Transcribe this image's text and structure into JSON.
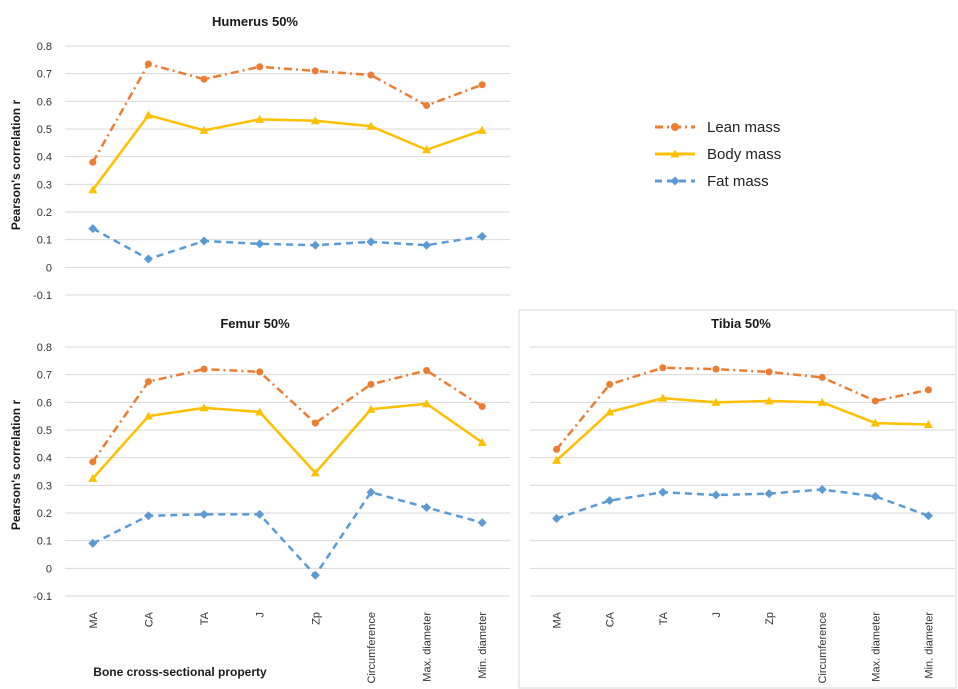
{
  "colors": {
    "lean": "#ED7D31",
    "body": "#FFC000",
    "fat": "#5B9BD5"
  },
  "shared": {
    "ylabel": "Pearson's correlation r",
    "xlabel": "Bone cross-sectional property",
    "ylim": [
      -0.1,
      0.8
    ],
    "yticks": [
      "0.8",
      "0.7",
      "0.6",
      "0.5",
      "0.4",
      "0.3",
      "0.2",
      "0.1",
      "0",
      "-0.1"
    ],
    "legend": [
      {
        "name": "Lean mass",
        "icon": "circle-marker"
      },
      {
        "name": "Body mass",
        "icon": "triangle-marker"
      },
      {
        "name": "Fat mass",
        "icon": "diamond-marker"
      }
    ]
  },
  "chart_data": [
    {
      "type": "line",
      "title": "Humerus 50%",
      "ylabel": "Pearson's correlation r",
      "ylim": [
        -0.1,
        0.8
      ],
      "grid": true,
      "legend_position": "right",
      "categories": [
        "MA",
        "CA",
        "TA",
        "J",
        "Zp",
        "Circumference",
        "Max. diameter",
        "Min. diameter"
      ],
      "category_labels_visible": false,
      "series": [
        {
          "name": "Lean mass",
          "values": [
            0.38,
            0.735,
            0.68,
            0.725,
            0.71,
            0.695,
            0.585,
            0.66
          ]
        },
        {
          "name": "Body mass",
          "values": [
            0.28,
            0.55,
            0.495,
            0.535,
            0.53,
            0.51,
            0.425,
            0.495
          ]
        },
        {
          "name": "Fat mass",
          "values": [
            0.14,
            0.03,
            0.095,
            0.085,
            0.08,
            0.092,
            0.08,
            0.112
          ]
        }
      ]
    },
    {
      "type": "line",
      "title": "Femur 50%",
      "ylabel": "Pearson's correlation r",
      "xlabel": "Bone cross-sectional property",
      "ylim": [
        -0.1,
        0.8
      ],
      "grid": true,
      "categories": [
        "MA",
        "CA",
        "TA",
        "J",
        "Zp",
        "Circumference",
        "Max. diameter",
        "Min. diameter"
      ],
      "series": [
        {
          "name": "Lean mass",
          "values": [
            0.385,
            0.675,
            0.72,
            0.71,
            0.525,
            0.665,
            0.715,
            0.585
          ]
        },
        {
          "name": "Body mass",
          "values": [
            0.325,
            0.55,
            0.58,
            0.565,
            0.345,
            0.575,
            0.595,
            0.455
          ]
        },
        {
          "name": "Fat mass",
          "values": [
            0.09,
            0.19,
            0.195,
            0.195,
            -0.025,
            0.275,
            0.22,
            0.165
          ]
        }
      ]
    },
    {
      "type": "line",
      "title": "Tibia 50%",
      "ylim": [
        -0.1,
        0.8
      ],
      "grid": true,
      "categories": [
        "MA",
        "CA",
        "TA",
        "J",
        "Zp",
        "Circumference",
        "Max. diameter",
        "Min. diameter"
      ],
      "series": [
        {
          "name": "Lean mass",
          "values": [
            0.43,
            0.665,
            0.725,
            0.72,
            0.71,
            0.69,
            0.605,
            0.645
          ]
        },
        {
          "name": "Body mass",
          "values": [
            0.39,
            0.565,
            0.615,
            0.6,
            0.605,
            0.6,
            0.525,
            0.52
          ]
        },
        {
          "name": "Fat mass",
          "values": [
            0.18,
            0.245,
            0.275,
            0.265,
            0.27,
            0.285,
            0.26,
            0.19
          ]
        }
      ]
    }
  ]
}
